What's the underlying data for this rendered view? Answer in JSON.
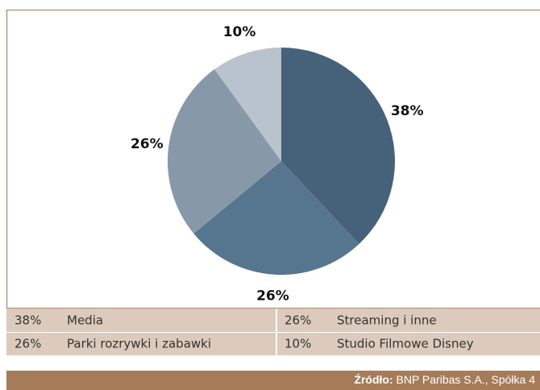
{
  "chart_data": {
    "type": "pie",
    "categories": [
      "Media",
      "Streaming i inne",
      "Parki rozrywki i zabawki",
      "Studio Filmowe Disney"
    ],
    "values": [
      38,
      26,
      26,
      10
    ],
    "value_labels": [
      "38%",
      "26%",
      "26%",
      "10%"
    ],
    "colors": [
      "#46617a",
      "#56758f",
      "#8799a8",
      "#b8c3cd"
    ]
  },
  "source": {
    "label": "Źródło:",
    "text": "BNP Paribas S.A., Spółka 4"
  }
}
